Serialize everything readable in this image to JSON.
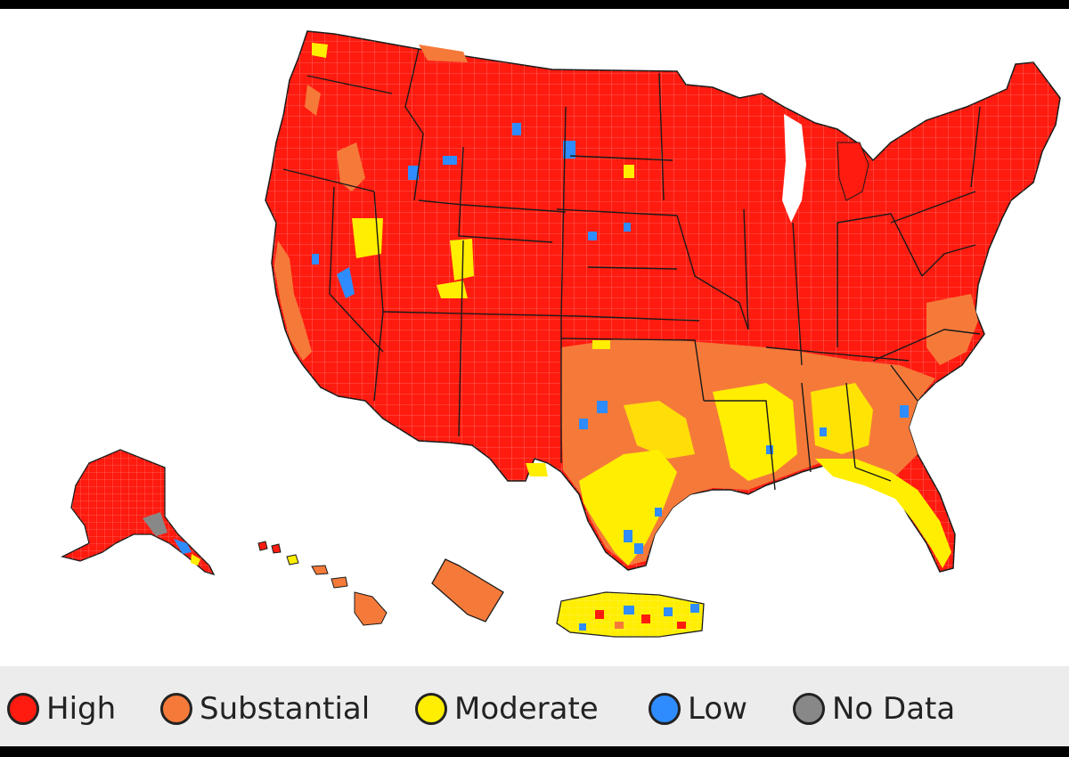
{
  "colors": {
    "high": "#ff1b0f",
    "substantial": "#f57a3a",
    "moderate": "#ffee00",
    "low": "#2e8cff",
    "no_data": "#888888",
    "border": "#1a1a1a",
    "county_line": "#ffffff"
  },
  "legend": {
    "items": [
      {
        "key": "high",
        "label": "High",
        "color": "#ff1b0f"
      },
      {
        "key": "substantial",
        "label": "Substantial",
        "color": "#f57a3a"
      },
      {
        "key": "moderate",
        "label": "Moderate",
        "color": "#ffee00"
      },
      {
        "key": "low",
        "label": "Low",
        "color": "#2e8cff"
      },
      {
        "key": "no_data",
        "label": "No Data",
        "color": "#888888"
      }
    ]
  }
}
